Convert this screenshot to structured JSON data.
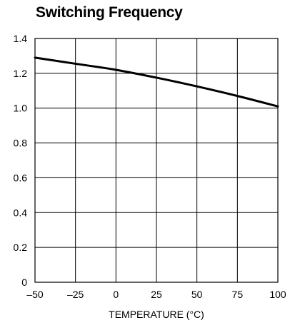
{
  "chart_data": {
    "type": "line",
    "title": "Switching Frequency",
    "xlabel": "TEMPERATURE (°C)",
    "ylabel": "",
    "xlim": [
      -50,
      100
    ],
    "ylim": [
      0,
      1.4
    ],
    "xticks": [
      -50,
      -25,
      0,
      25,
      50,
      75,
      100
    ],
    "xtick_labels": [
      "–50",
      "–25",
      "0",
      "25",
      "50",
      "75",
      "100"
    ],
    "yticks": [
      0,
      0.2,
      0.4,
      0.6,
      0.8,
      1.0,
      1.2,
      1.4
    ],
    "ytick_labels": [
      "0",
      "0.2",
      "0.4",
      "0.6",
      "0.8",
      "1.0",
      "1.2",
      "1.4"
    ],
    "grid": true,
    "series": [
      {
        "x": [
          -50,
          -25,
          0,
          25,
          50,
          75,
          100
        ],
        "y": [
          1.29,
          1.255,
          1.22,
          1.175,
          1.125,
          1.07,
          1.01
        ]
      }
    ]
  }
}
